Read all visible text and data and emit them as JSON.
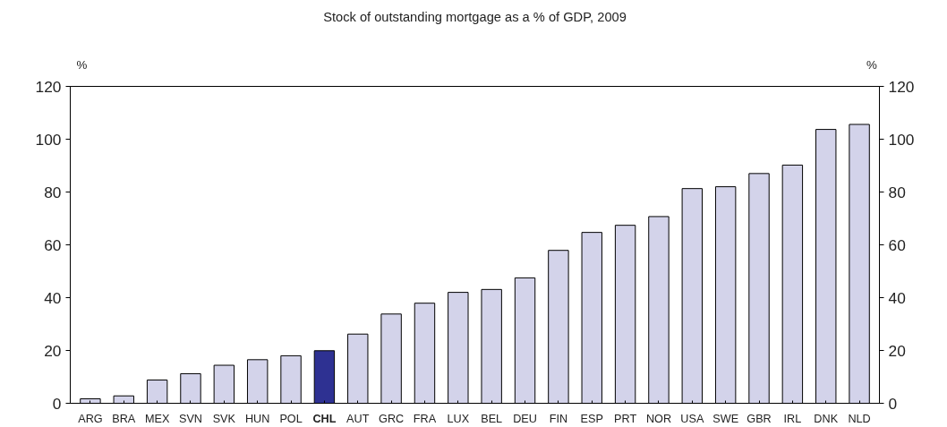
{
  "chart_data": {
    "type": "bar",
    "title": "Stock of outstanding mortgage as a % of GDP, 2009",
    "ylabel": "%",
    "y2label": "%",
    "categories": [
      "ARG",
      "BRA",
      "MEX",
      "SVN",
      "SVK",
      "HUN",
      "POL",
      "CHL",
      "AUT",
      "GRC",
      "FRA",
      "LUX",
      "BEL",
      "DEU",
      "FIN",
      "ESP",
      "PRT",
      "NOR",
      "USA",
      "SWE",
      "GBR",
      "IRL",
      "DNK",
      "NLD"
    ],
    "values": [
      1.7,
      2.8,
      8.8,
      11.2,
      14.4,
      16.5,
      18.0,
      19.9,
      26.2,
      33.8,
      37.9,
      42.0,
      43.1,
      47.5,
      57.9,
      64.7,
      67.4,
      70.7,
      81.3,
      82.0,
      87.0,
      90.2,
      103.7,
      105.6
    ],
    "colors": [
      "#d3d3ea",
      "#d3d3ea",
      "#d3d3ea",
      "#d3d3ea",
      "#d3d3ea",
      "#d3d3ea",
      "#d3d3ea",
      "#2e3192",
      "#d3d3ea",
      "#d3d3ea",
      "#d3d3ea",
      "#d3d3ea",
      "#d3d3ea",
      "#d3d3ea",
      "#d3d3ea",
      "#d3d3ea",
      "#d3d3ea",
      "#d3d3ea",
      "#d3d3ea",
      "#d3d3ea",
      "#d3d3ea",
      "#d3d3ea",
      "#d3d3ea",
      "#d3d3ea"
    ],
    "ylim": [
      0,
      120
    ],
    "yticks": [
      0,
      20,
      40,
      60,
      80,
      100,
      120
    ],
    "y2lim": [
      0,
      120
    ],
    "y2ticks": [
      0,
      20,
      40,
      60,
      80,
      100,
      120
    ],
    "grid": false
  }
}
